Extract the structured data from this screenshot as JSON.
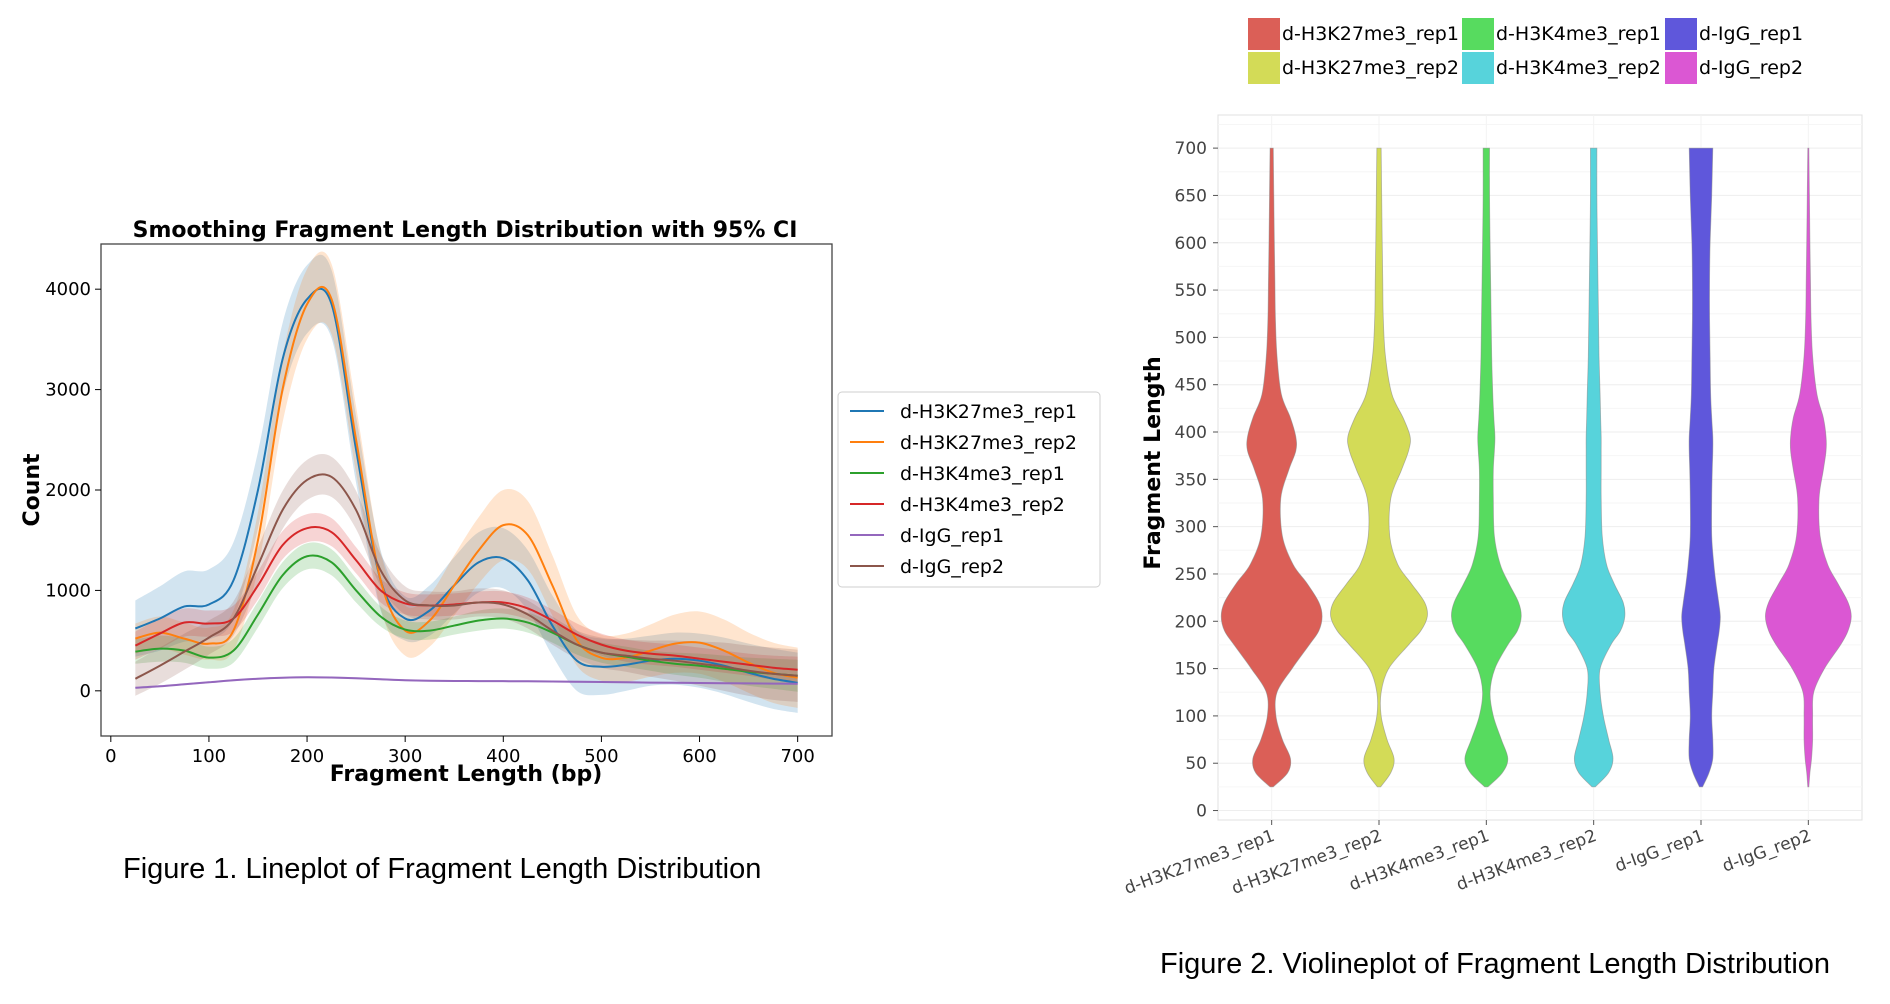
{
  "figure1": {
    "caption": "Figure 1. Lineplot of Fragment Length Distribution"
  },
  "figure2": {
    "caption": "Figure 2. Violineplot of Fragment Length Distribution"
  },
  "chart_data": [
    {
      "type": "line",
      "title": "Smoothing Fragment Length Distribution with 95% CI",
      "xlabel": "Fragment Length (bp)",
      "ylabel": "Count",
      "xlim": [
        -10,
        735
      ],
      "ylim": [
        -450,
        4450
      ],
      "xticks": [
        0,
        100,
        200,
        300,
        400,
        500,
        600,
        700
      ],
      "yticks": [
        0,
        1000,
        2000,
        3000,
        4000
      ],
      "legend_position": "outside-right",
      "x": [
        25,
        50,
        75,
        100,
        125,
        150,
        175,
        200,
        225,
        250,
        275,
        300,
        325,
        350,
        375,
        400,
        425,
        450,
        475,
        500,
        525,
        550,
        575,
        600,
        625,
        650,
        675,
        700
      ],
      "series": [
        {
          "name": "d-H3K27me3_rep1",
          "color": "#1f77b4",
          "values": [
            620,
            720,
            840,
            860,
            1100,
            2000,
            3300,
            3900,
            3850,
            2400,
            1100,
            720,
            800,
            1050,
            1280,
            1320,
            1100,
            650,
            300,
            240,
            260,
            300,
            320,
            300,
            250,
            180,
            120,
            80
          ],
          "ci": [
            280,
            320,
            350,
            350,
            380,
            380,
            360,
            340,
            340,
            330,
            300,
            220,
            250,
            280,
            300,
            300,
            300,
            300,
            300,
            280,
            260,
            250,
            260,
            270,
            280,
            290,
            300,
            300
          ]
        },
        {
          "name": "d-H3K27me3_rep2",
          "color": "#ff7f0e",
          "values": [
            520,
            580,
            520,
            470,
            600,
            1500,
            3000,
            3850,
            3900,
            2500,
            1100,
            600,
            700,
            1050,
            1400,
            1650,
            1550,
            1050,
            500,
            330,
            330,
            400,
            470,
            480,
            400,
            280,
            180,
            130
          ],
          "ci": [
            150,
            160,
            160,
            160,
            200,
            280,
            330,
            350,
            350,
            330,
            280,
            250,
            260,
            300,
            330,
            350,
            340,
            300,
            250,
            230,
            240,
            260,
            290,
            310,
            310,
            300,
            300,
            300
          ]
        },
        {
          "name": "d-H3K4me3_rep1",
          "color": "#2ca02c",
          "values": [
            390,
            420,
            400,
            330,
            400,
            760,
            1150,
            1340,
            1280,
            1000,
            740,
            610,
            600,
            650,
            700,
            720,
            680,
            580,
            460,
            380,
            340,
            300,
            270,
            250,
            220,
            190,
            170,
            150
          ],
          "ci": [
            120,
            130,
            120,
            110,
            120,
            130,
            130,
            130,
            130,
            120,
            100,
            90,
            90,
            90,
            100,
            100,
            100,
            100,
            100,
            100,
            100,
            100,
            110,
            120,
            130,
            140,
            150,
            160
          ]
        },
        {
          "name": "d-H3K4me3_rep2",
          "color": "#d62728",
          "values": [
            450,
            570,
            680,
            670,
            720,
            1050,
            1450,
            1620,
            1580,
            1300,
            1000,
            870,
            850,
            860,
            880,
            880,
            820,
            700,
            560,
            460,
            400,
            370,
            350,
            320,
            290,
            260,
            230,
            210
          ],
          "ci": [
            140,
            150,
            140,
            130,
            130,
            140,
            140,
            140,
            140,
            130,
            120,
            110,
            110,
            110,
            110,
            110,
            110,
            110,
            110,
            110,
            110,
            110,
            110,
            110,
            110,
            110,
            120,
            130
          ]
        },
        {
          "name": "d-IgG_rep1",
          "color": "#9467bd",
          "values": [
            30,
            45,
            65,
            85,
            105,
            120,
            130,
            135,
            132,
            125,
            115,
            105,
            100,
            98,
            97,
            96,
            95,
            93,
            90,
            88,
            85,
            82,
            80,
            78,
            76,
            74,
            72,
            70
          ],
          "ci": [
            10,
            10,
            10,
            10,
            10,
            10,
            10,
            10,
            10,
            10,
            10,
            10,
            10,
            10,
            10,
            10,
            10,
            10,
            10,
            10,
            10,
            10,
            10,
            10,
            10,
            10,
            10,
            10
          ]
        },
        {
          "name": "d-IgG_rep2",
          "color": "#8c564b",
          "values": [
            120,
            250,
            390,
            530,
            720,
            1250,
            1800,
            2100,
            2130,
            1800,
            1200,
            900,
            850,
            850,
            880,
            860,
            760,
            600,
            460,
            380,
            350,
            320,
            300,
            270,
            240,
            200,
            170,
            150
          ],
          "ci": [
            170,
            180,
            180,
            170,
            170,
            180,
            190,
            200,
            200,
            190,
            160,
            140,
            140,
            140,
            140,
            140,
            140,
            140,
            140,
            150,
            160,
            180,
            200,
            220,
            240,
            250,
            260,
            260
          ]
        }
      ]
    },
    {
      "type": "violin",
      "ylabel": "Fragment Length",
      "xlabel": "",
      "ylim": [
        -10,
        735
      ],
      "yticks": [
        0,
        50,
        100,
        150,
        200,
        250,
        300,
        350,
        400,
        450,
        500,
        550,
        600,
        650,
        700
      ],
      "categories": [
        "d-H3K27me3_rep1",
        "d-H3K27me3_rep2",
        "d-H3K4me3_rep1",
        "d-H3K4me3_rep2",
        "d-IgG_rep1",
        "d-IgG_rep2"
      ],
      "colors": [
        "#db5f57",
        "#d3db57",
        "#57db5f",
        "#57d3db",
        "#5f57db",
        "#db57d3"
      ],
      "legend_position": "top",
      "legend_columns": 3,
      "density_y": [
        25,
        40,
        55,
        75,
        100,
        125,
        150,
        175,
        190,
        205,
        220,
        240,
        260,
        290,
        330,
        360,
        380,
        395,
        415,
        440,
        480,
        520,
        560,
        600,
        650,
        700
      ],
      "half_widths": [
        [
          0.03,
          0.3,
          0.35,
          0.2,
          0.08,
          0.1,
          0.38,
          0.7,
          0.88,
          0.94,
          0.88,
          0.66,
          0.4,
          0.2,
          0.17,
          0.32,
          0.45,
          0.45,
          0.35,
          0.18,
          0.1,
          0.07,
          0.06,
          0.05,
          0.04,
          0.03
        ],
        [
          0.03,
          0.22,
          0.28,
          0.15,
          0.04,
          0.04,
          0.18,
          0.55,
          0.78,
          0.9,
          0.85,
          0.6,
          0.35,
          0.2,
          0.22,
          0.42,
          0.55,
          0.58,
          0.45,
          0.24,
          0.12,
          0.08,
          0.07,
          0.06,
          0.05,
          0.04
        ],
        [
          0.03,
          0.3,
          0.4,
          0.28,
          0.13,
          0.07,
          0.16,
          0.4,
          0.58,
          0.65,
          0.6,
          0.42,
          0.26,
          0.15,
          0.13,
          0.13,
          0.15,
          0.16,
          0.14,
          0.12,
          0.1,
          0.09,
          0.08,
          0.07,
          0.06,
          0.06
        ],
        [
          0.03,
          0.28,
          0.36,
          0.28,
          0.18,
          0.12,
          0.12,
          0.32,
          0.5,
          0.58,
          0.55,
          0.38,
          0.24,
          0.16,
          0.14,
          0.14,
          0.14,
          0.14,
          0.13,
          0.12,
          0.1,
          0.09,
          0.08,
          0.07,
          0.06,
          0.06
        ],
        [
          0.03,
          0.15,
          0.22,
          0.22,
          0.2,
          0.22,
          0.24,
          0.3,
          0.34,
          0.36,
          0.33,
          0.28,
          0.24,
          0.2,
          0.2,
          0.21,
          0.22,
          0.22,
          0.2,
          0.18,
          0.17,
          0.16,
          0.16,
          0.17,
          0.2,
          0.22
        ],
        [
          0.01,
          0.03,
          0.06,
          0.08,
          0.08,
          0.1,
          0.3,
          0.6,
          0.74,
          0.8,
          0.74,
          0.55,
          0.36,
          0.22,
          0.2,
          0.28,
          0.33,
          0.33,
          0.28,
          0.16,
          0.08,
          0.05,
          0.04,
          0.03,
          0.02,
          0.01
        ]
      ]
    }
  ]
}
